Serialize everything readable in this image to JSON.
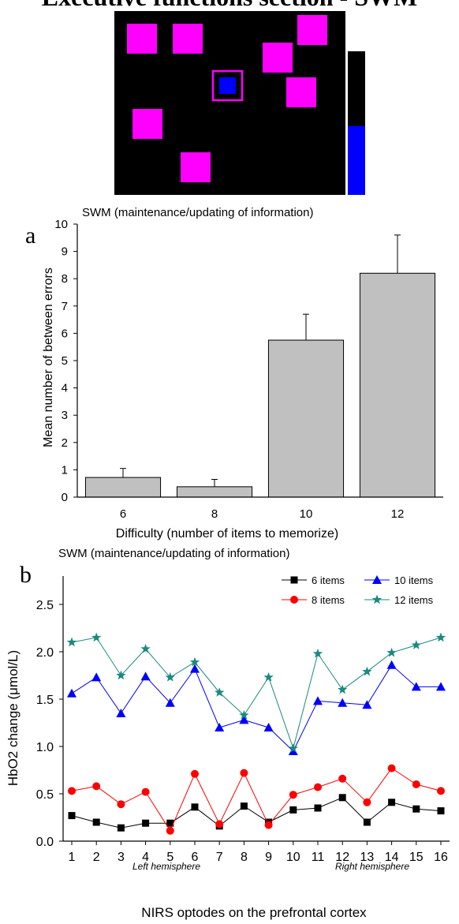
{
  "page": {
    "title": "Executive functions section - SWM",
    "panel_a_label": "a",
    "panel_b_label": "b"
  },
  "task_screen": {
    "background": "#000000",
    "box_color": "#ff00ff",
    "token_color": "#0000ff",
    "bar_empty_color": "#ffffff",
    "bar_fill_color": "#0000ff",
    "bar_fill_level": 0.48
  },
  "chart_data": [
    {
      "type": "bar",
      "title": "SWM (maintenance/updating of information)",
      "xlabel": "Difficulty (number of items to memorize)",
      "ylabel": "Mean number of between errors",
      "categories": [
        "6",
        "8",
        "10",
        "12"
      ],
      "values": [
        0.72,
        0.38,
        5.75,
        8.2
      ],
      "error_plus": [
        0.33,
        0.27,
        0.95,
        1.4
      ],
      "ylim": [
        0,
        10
      ],
      "yticks": [
        "0",
        "1",
        "2",
        "3",
        "4",
        "5",
        "6",
        "7",
        "8",
        "9",
        "10"
      ],
      "bar_color": "#c0c0c0",
      "grid": false
    },
    {
      "type": "line",
      "title": "SWM (maintenance/updating of information)",
      "xlabel": "NIRS optodes on the prefrontal cortex",
      "ylabel": "HbO2 change (μmol/L)",
      "x": [
        1,
        2,
        3,
        4,
        5,
        6,
        7,
        8,
        9,
        10,
        11,
        12,
        13,
        14,
        15,
        16
      ],
      "xticks": [
        "1",
        "2",
        "3",
        "4",
        "5",
        "6",
        "7",
        "8",
        "9",
        "10",
        "11",
        "12",
        "13",
        "14",
        "15",
        "16"
      ],
      "yticks": [
        "0.0",
        "0.5",
        "1.0",
        "1.5",
        "2.0",
        "2.5"
      ],
      "ylim": [
        0,
        2.8
      ],
      "annotations": [
        "Left hemisphere",
        "Right hemisphere"
      ],
      "legend_position": "top-right",
      "grid": false,
      "series": [
        {
          "name": "6 items",
          "color": "#000000",
          "marker": "square",
          "values": [
            0.27,
            0.2,
            0.14,
            0.19,
            0.19,
            0.36,
            0.16,
            0.37,
            0.2,
            0.33,
            0.35,
            0.46,
            0.2,
            0.41,
            0.34,
            0.32
          ]
        },
        {
          "name": "8 items",
          "color": "#ff0000",
          "marker": "circle",
          "values": [
            0.53,
            0.58,
            0.39,
            0.52,
            0.11,
            0.71,
            0.18,
            0.72,
            0.17,
            0.49,
            0.57,
            0.66,
            0.41,
            0.77,
            0.6,
            0.53
          ]
        },
        {
          "name": "10 items",
          "color": "#0000ff",
          "marker": "triangle",
          "values": [
            1.56,
            1.73,
            1.35,
            1.74,
            1.46,
            1.82,
            1.2,
            1.28,
            1.2,
            0.95,
            1.48,
            1.46,
            1.44,
            1.86,
            1.63,
            1.63
          ]
        },
        {
          "name": "12 items",
          "color": "#1a8a7e",
          "marker": "star",
          "values": [
            2.1,
            2.15,
            1.75,
            2.03,
            1.73,
            1.89,
            1.57,
            1.33,
            1.73,
            0.98,
            1.98,
            1.6,
            1.79,
            1.99,
            2.07,
            2.15
          ]
        }
      ]
    }
  ]
}
